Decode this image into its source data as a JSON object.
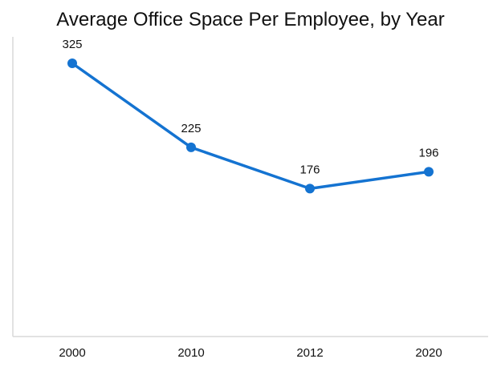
{
  "chart_data": {
    "type": "line",
    "title": "Average Office Space Per Employee, by Year",
    "categories": [
      "2000",
      "2010",
      "2012",
      "2020"
    ],
    "series": [
      {
        "values": [
          325,
          225,
          176,
          196
        ]
      }
    ],
    "data_labels": [
      "325",
      "225",
      "176",
      "196"
    ],
    "ylim": [
      0,
      325
    ],
    "grid": false,
    "legend": "none",
    "line_color": "#1473d1",
    "axis_color": "#d9d9d9"
  }
}
